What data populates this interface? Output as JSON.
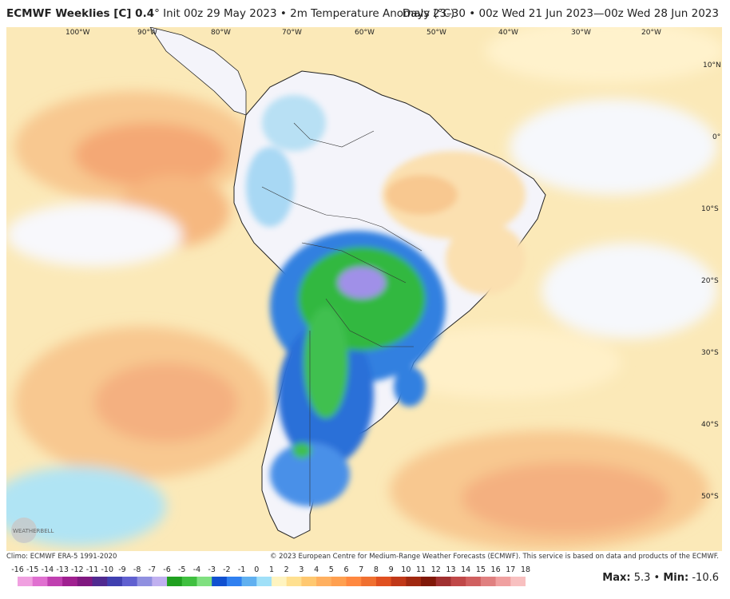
{
  "header": {
    "title_bold": "ECMWF Weeklies [C] 0.4",
    "title_rest": "° Init 00z 29 May 2023 • 2m Temperature Anomaly (°C)",
    "period": "Days 23–30 • 00z Wed 21 Jun 2023—00z Wed 28 Jun 2023"
  },
  "map": {
    "lon_labels": [
      "100°W",
      "90°W",
      "80°W",
      "70°W",
      "60°W",
      "50°W",
      "40°W",
      "30°W",
      "20°W"
    ],
    "lat_labels": [
      "10°N",
      "0°",
      "10°S",
      "20°S",
      "30°S",
      "40°S",
      "50°S"
    ],
    "logo_text": "WEATHERBELL",
    "region": "South America"
  },
  "footer": {
    "climo": "Climo: ECMWF ERA-5 1991-2020",
    "copyright": "© 2023 European Centre for Medium-Range Weather Forecasts (ECMWF). This service is based on data and products of the ECMWF.",
    "max_label": "Max:",
    "max_value": "5.3",
    "min_label": "Min:",
    "min_value": "-10.6"
  },
  "colorbar": {
    "ticks": [
      "-16",
      "-15",
      "-14",
      "-13",
      "-12",
      "-11",
      "-10",
      "-9",
      "-8",
      "-7",
      "-6",
      "-5",
      "-4",
      "-3",
      "-2",
      "-1",
      "0",
      "1",
      "2",
      "3",
      "4",
      "5",
      "6",
      "7",
      "8",
      "9",
      "10",
      "11",
      "12",
      "13",
      "14",
      "15",
      "16",
      "17",
      "18"
    ],
    "colors": [
      "#f0a0e0",
      "#e070d0",
      "#c040b0",
      "#a02090",
      "#801880",
      "#502a90",
      "#4040b0",
      "#6060d0",
      "#9090e0",
      "#c0b0f0",
      "#20a020",
      "#40c040",
      "#80e080",
      "#1050d0",
      "#3080f0",
      "#60b0f0",
      "#a0e0f8",
      "#fff4c0",
      "#ffe090",
      "#ffc870",
      "#ffb060",
      "#ffa050",
      "#ff8840",
      "#f07030",
      "#e05020",
      "#c03818",
      "#a02810",
      "#801808",
      "#a03030",
      "#c04848",
      "#d06060",
      "#e08080",
      "#f0a0a0",
      "#f8c0c0"
    ]
  }
}
